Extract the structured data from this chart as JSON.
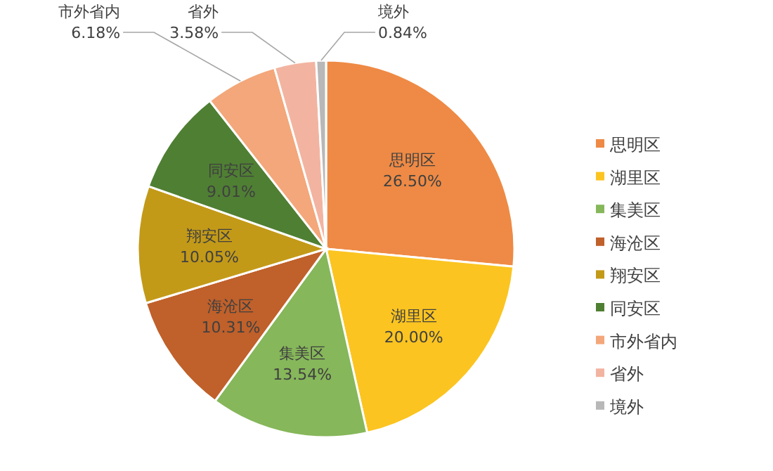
{
  "chart_data": {
    "type": "pie",
    "categories": [
      "思明区",
      "湖里区",
      "集美区",
      "海沧区",
      "翔安区",
      "同安区",
      "市外省内",
      "省外",
      "境外"
    ],
    "values": [
      26.5,
      20.0,
      13.54,
      10.31,
      10.05,
      9.01,
      6.18,
      3.58,
      0.84
    ],
    "value_labels": [
      "26.50%",
      "20.00%",
      "13.54%",
      "10.31%",
      "10.05%",
      "9.01%",
      "6.18%",
      "3.58%",
      "0.84%"
    ],
    "colors": [
      "#ee8a45",
      "#fbc420",
      "#86b75a",
      "#c0602a",
      "#c39a18",
      "#4f7f33",
      "#f3a77a",
      "#f2b4a0",
      "#b8b8b8"
    ],
    "legend": "right"
  }
}
